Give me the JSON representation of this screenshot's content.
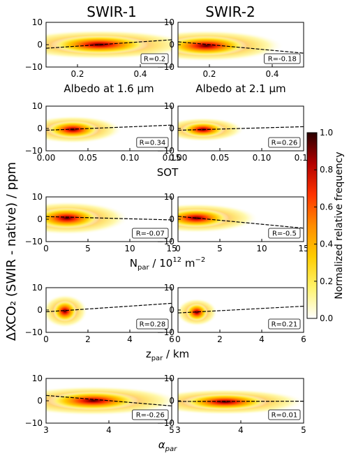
{
  "column_titles": [
    "SWIR-1",
    "SWIR-2"
  ],
  "shared_ylabel": "ΔXCO₂ (SWIR - native) / ppm",
  "colorbar": {
    "label": "Normalized relative frequency",
    "range": [
      0.0,
      1.0
    ],
    "ticks": [
      "0.0",
      "0.2",
      "0.4",
      "0.6",
      "0.8",
      "1.0"
    ],
    "colors": [
      "#ffffff",
      "#fff36b",
      "#ffcc00",
      "#ff8c00",
      "#ff3300",
      "#b30000",
      "#2a0000"
    ]
  },
  "chart_data": [
    {
      "type": "heatmap",
      "row": 0,
      "col": 0,
      "xlabel": "Albedo at 1.6 μm",
      "xlim": [
        0.1,
        0.5
      ],
      "ylim": [
        -10,
        10
      ],
      "xticks": [
        "0.2",
        "0.4"
      ],
      "xtick_values": [
        0.2,
        0.4
      ],
      "yticks": [
        "10",
        "0",
        "−10"
      ],
      "annotation": "R=0.2",
      "density_center": [
        0.27,
        0.0
      ],
      "density_spread": [
        0.06,
        1.6
      ],
      "fit_line": {
        "x": [
          0.1,
          0.5
        ],
        "y": [
          -1.6,
          2.2
        ]
      }
    },
    {
      "type": "heatmap",
      "row": 0,
      "col": 1,
      "xlabel": "Albedo at 2.1 μm",
      "xlim": [
        0.1,
        0.5
      ],
      "ylim": [
        -10,
        10
      ],
      "xticks": [
        "0.2",
        "0.4"
      ],
      "xtick_values": [
        0.2,
        0.4
      ],
      "yticks": [
        "10",
        "0",
        "−10"
      ],
      "annotation": "R=-0.18",
      "density_center": [
        0.19,
        -0.5
      ],
      "density_spread": [
        0.05,
        1.7
      ],
      "fit_line": {
        "x": [
          0.1,
          0.5
        ],
        "y": [
          1.3,
          -3.8
        ]
      }
    },
    {
      "type": "heatmap",
      "row": 1,
      "col": 0,
      "xlabel": "SOT",
      "xlim": [
        0.0,
        0.15
      ],
      "ylim": [
        -10,
        10
      ],
      "xticks": [
        "0.00",
        "0.05",
        "0.10",
        "0.15"
      ],
      "xtick_values": [
        0.0,
        0.05,
        0.1,
        0.15
      ],
      "yticks": [
        "10",
        "0",
        "−10"
      ],
      "annotation": "R=0.34",
      "density_center": [
        0.032,
        -0.5
      ],
      "density_spread": [
        0.012,
        1.5
      ],
      "fit_line": {
        "x": [
          0.0,
          0.15
        ],
        "y": [
          -0.8,
          1.5
        ]
      }
    },
    {
      "type": "heatmap",
      "row": 1,
      "col": 1,
      "xlabel": "",
      "xlim": [
        0.0,
        0.15
      ],
      "ylim": [
        -10,
        10
      ],
      "xticks": [
        "0.00",
        "0.05",
        "0.10",
        "0.15"
      ],
      "xtick_values": [
        0.0,
        0.05,
        0.1,
        0.15
      ],
      "yticks": [
        "10",
        "0",
        "−10"
      ],
      "annotation": "R=0.26",
      "density_center": [
        0.03,
        -0.5
      ],
      "density_spread": [
        0.01,
        1.3
      ],
      "fit_line": {
        "x": [
          0.0,
          0.15
        ],
        "y": [
          -0.8,
          0.8
        ]
      }
    },
    {
      "type": "heatmap",
      "row": 2,
      "col": 0,
      "xlabel": "N_par / 10^12 m^-2",
      "xlim": [
        0,
        15
      ],
      "ylim": [
        -10,
        10
      ],
      "xticks": [
        "0",
        "5",
        "10",
        "15"
      ],
      "xtick_values": [
        0,
        5,
        10,
        15
      ],
      "yticks": [
        "10",
        "0",
        "−10"
      ],
      "annotation": "R=-0.07",
      "density_center": [
        2.5,
        0.5
      ],
      "density_spread": [
        1.5,
        1.8
      ],
      "fit_line": {
        "x": [
          0,
          15
        ],
        "y": [
          1.2,
          -0.3
        ]
      }
    },
    {
      "type": "heatmap",
      "row": 2,
      "col": 1,
      "xlabel": "",
      "xlim": [
        0,
        15
      ],
      "ylim": [
        -10,
        10
      ],
      "xticks": [
        "0",
        "5",
        "10",
        "15"
      ],
      "xtick_values": [
        0,
        5,
        10,
        15
      ],
      "yticks": [
        "10",
        "0",
        "−10"
      ],
      "annotation": "R=-0.5",
      "density_center": [
        2.2,
        0.5
      ],
      "density_spread": [
        1.5,
        1.6
      ],
      "fit_line": {
        "x": [
          0,
          15
        ],
        "y": [
          1.3,
          -4.0
        ]
      }
    },
    {
      "type": "heatmap",
      "row": 3,
      "col": 0,
      "xlabel": "z_par / km",
      "xlim": [
        0,
        6
      ],
      "ylim": [
        -10,
        10
      ],
      "xticks": [
        "0",
        "2",
        "4",
        "6"
      ],
      "xtick_values": [
        0,
        2,
        4,
        6
      ],
      "yticks": [
        "10",
        "0",
        "−10"
      ],
      "annotation": "R=0.28",
      "density_center": [
        0.9,
        -0.5
      ],
      "density_spread": [
        0.22,
        1.8
      ],
      "fit_line": {
        "x": [
          0,
          6
        ],
        "y": [
          -0.8,
          3.0
        ]
      }
    },
    {
      "type": "heatmap",
      "row": 3,
      "col": 1,
      "xlabel": "",
      "xlim": [
        0,
        6
      ],
      "ylim": [
        -10,
        10
      ],
      "xticks": [
        "0",
        "2",
        "4",
        "6"
      ],
      "xtick_values": [
        0,
        2,
        4,
        6
      ],
      "yticks": [
        "10",
        "0",
        "−10"
      ],
      "annotation": "R=0.21",
      "density_center": [
        0.9,
        -1.0
      ],
      "density_spread": [
        0.2,
        1.5
      ],
      "fit_line": {
        "x": [
          0,
          6
        ],
        "y": [
          -1.3,
          1.7
        ]
      }
    },
    {
      "type": "heatmap",
      "row": 4,
      "col": 0,
      "xlabel": "α_par",
      "xlim": [
        3,
        5
      ],
      "ylim": [
        -10,
        10
      ],
      "xticks": [
        "3",
        "4",
        "5"
      ],
      "xtick_values": [
        3,
        4,
        5
      ],
      "yticks": [
        "10",
        "0",
        "−10"
      ],
      "annotation": "R=-0.26",
      "density_center": [
        3.75,
        0.0
      ],
      "density_spread": [
        0.28,
        1.6
      ],
      "fit_line": {
        "x": [
          3,
          5
        ],
        "y": [
          2.4,
          -2.3
        ]
      }
    },
    {
      "type": "heatmap",
      "row": 4,
      "col": 1,
      "xlabel": "",
      "xlim": [
        3,
        5
      ],
      "ylim": [
        -10,
        10
      ],
      "xticks": [
        "3",
        "4",
        "5"
      ],
      "xtick_values": [
        3,
        4,
        5
      ],
      "yticks": [
        "10",
        "0",
        "−10"
      ],
      "annotation": "R=0.01",
      "density_center": [
        3.75,
        -0.5
      ],
      "density_spread": [
        0.26,
        1.4
      ],
      "fit_line": {
        "x": [
          3,
          5
        ],
        "y": [
          -0.3,
          -0.2
        ]
      }
    }
  ]
}
